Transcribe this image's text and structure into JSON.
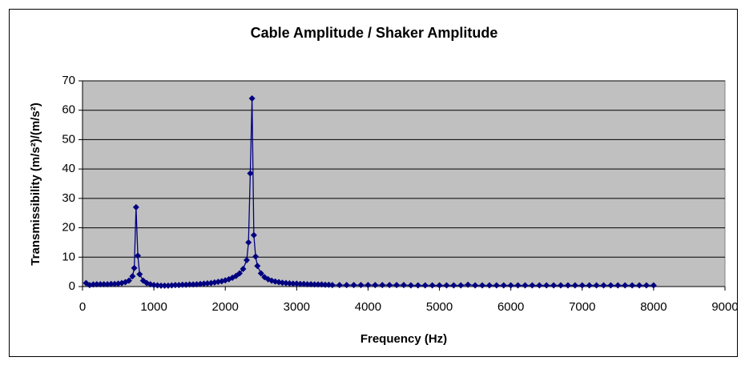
{
  "chart_data": {
    "type": "scatter",
    "title": "Cable Amplitude / Shaker Amplitude",
    "x_label": "Frequency (Hz)",
    "y_label": "Transmissibility (m/s²)/(m/s²)",
    "xlim": [
      0,
      9000
    ],
    "xticks": [
      0,
      1000,
      2000,
      3000,
      4000,
      5000,
      6000,
      7000,
      8000,
      9000
    ],
    "ylim": [
      0,
      70
    ],
    "yticks": [
      0,
      10,
      20,
      30,
      40,
      50,
      60,
      70
    ],
    "grid": true,
    "series": [
      {
        "color": "#000080",
        "x": [
          50,
          100,
          150,
          200,
          250,
          300,
          350,
          400,
          450,
          500,
          550,
          600,
          650,
          700,
          725,
          750,
          775,
          800,
          850,
          900,
          950,
          1000,
          1050,
          1100,
          1150,
          1200,
          1250,
          1300,
          1350,
          1400,
          1450,
          1500,
          1550,
          1600,
          1650,
          1700,
          1750,
          1800,
          1850,
          1900,
          1950,
          2000,
          2050,
          2100,
          2150,
          2200,
          2250,
          2300,
          2325,
          2350,
          2375,
          2400,
          2425,
          2450,
          2500,
          2550,
          2600,
          2650,
          2700,
          2750,
          2800,
          2850,
          2900,
          2950,
          3000,
          3050,
          3100,
          3150,
          3200,
          3250,
          3300,
          3350,
          3400,
          3450,
          3500,
          3600,
          3700,
          3800,
          3900,
          4000,
          4100,
          4200,
          4300,
          4400,
          4500,
          4600,
          4700,
          4800,
          4900,
          5000,
          5100,
          5200,
          5300,
          5400,
          5500,
          5600,
          5700,
          5800,
          5900,
          6000,
          6100,
          6200,
          6300,
          6400,
          6500,
          6600,
          6700,
          6800,
          6900,
          7000,
          7100,
          7200,
          7300,
          7400,
          7500,
          7600,
          7700,
          7800,
          7900,
          8000
        ],
        "values": [
          1.2,
          0.5,
          0.7,
          0.8,
          0.8,
          0.8,
          0.8,
          0.9,
          0.9,
          1.0,
          1.2,
          1.5,
          2.0,
          3.5,
          6.3,
          27,
          10.5,
          4.2,
          2.0,
          1.2,
          0.8,
          0.5,
          0.4,
          0.3,
          0.3,
          0.3,
          0.4,
          0.5,
          0.5,
          0.6,
          0.6,
          0.7,
          0.7,
          0.8,
          0.9,
          1.0,
          1.1,
          1.2,
          1.4,
          1.6,
          1.8,
          2.1,
          2.5,
          3.0,
          3.6,
          4.5,
          6.0,
          9.0,
          15,
          38.5,
          64,
          17.5,
          10.2,
          7.0,
          4.5,
          3.2,
          2.5,
          2.0,
          1.7,
          1.5,
          1.3,
          1.2,
          1.1,
          1.0,
          1.0,
          0.9,
          0.9,
          0.8,
          0.8,
          0.7,
          0.7,
          0.7,
          0.6,
          0.6,
          0.5,
          0.5,
          0.5,
          0.5,
          0.5,
          0.5,
          0.5,
          0.5,
          0.5,
          0.5,
          0.5,
          0.4,
          0.4,
          0.4,
          0.4,
          0.4,
          0.4,
          0.4,
          0.4,
          0.6,
          0.4,
          0.4,
          0.4,
          0.4,
          0.4,
          0.4,
          0.4,
          0.4,
          0.4,
          0.4,
          0.4,
          0.4,
          0.4,
          0.4,
          0.4,
          0.4,
          0.4,
          0.4,
          0.4,
          0.4,
          0.4,
          0.4,
          0.4,
          0.4,
          0.4,
          0.4
        ]
      }
    ]
  }
}
